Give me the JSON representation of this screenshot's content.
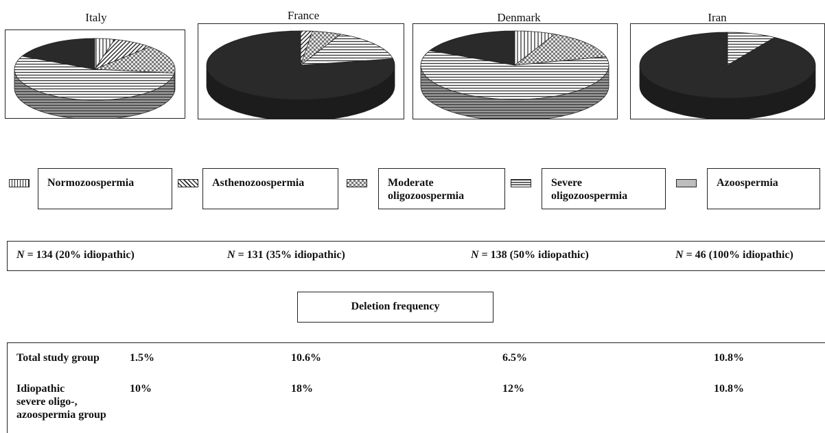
{
  "chart_data": [
    {
      "type": "pie",
      "title": "Italy",
      "categories": [
        "Normozoospermia",
        "Asthenozoospermia",
        "Moderate oligozoospermia",
        "Severe oligozoospermia",
        "Azoospermia"
      ],
      "values": [
        4,
        8,
        15,
        55,
        18
      ]
    },
    {
      "type": "pie",
      "title": "France",
      "categories": [
        "Normozoospermia",
        "Asthenozoospermia",
        "Moderate oligozoospermia",
        "Severe oligozoospermia",
        "Azoospermia"
      ],
      "values": [
        0,
        2,
        5,
        15,
        78
      ]
    },
    {
      "type": "pie",
      "title": "Denmark",
      "categories": [
        "Normozoospermia",
        "Asthenozoospermia",
        "Moderate oligozoospermia",
        "Severe oligozoospermia",
        "Azoospermia"
      ],
      "values": [
        7,
        0,
        14,
        61,
        18
      ]
    },
    {
      "type": "pie",
      "title": "Iran",
      "categories": [
        "Normozoospermia",
        "Asthenozoospermia",
        "Moderate oligozoospermia",
        "Severe oligozoospermia",
        "Azoospermia"
      ],
      "values": [
        0,
        0,
        0,
        9,
        91
      ]
    }
  ],
  "legend": [
    {
      "label": "Normozoospermia",
      "pattern": "vertical-lines"
    },
    {
      "label": "Asthenozoospermia",
      "pattern": "diagonal-lines"
    },
    {
      "label": "Moderate oligozoospermia",
      "pattern": "checker"
    },
    {
      "label": "Severe oligozoospermia",
      "pattern": "horizontal-lines"
    },
    {
      "label": "Azoospermia",
      "pattern": "solid-gray"
    }
  ],
  "legend_text": {
    "normo": "Normozoospermia",
    "astheno": "Asthenozoospermia",
    "moderate_1": "Moderate",
    "moderate_2": "oligozoospermia",
    "severe_1": "Severe",
    "severe_2": "oligozoospermia",
    "azoo": "Azoospermia"
  },
  "cohorts": [
    {
      "n_label": "N",
      "n_text": " = 134 (20% idiopathic)"
    },
    {
      "n_label": "N",
      "n_text": " = 131 (35% idiopathic)"
    },
    {
      "n_label": "N",
      "n_text": " = 138 (50% idiopathic)"
    },
    {
      "n_label": "N",
      "n_text": " = 46 (100% idiopathic)"
    }
  ],
  "deletion_header": "Deletion frequency",
  "table": {
    "row1_label": "Total study group",
    "row1": [
      "1.5%",
      "10.6%",
      "6.5%",
      "10.8%"
    ],
    "row2_label_1": "Idiopathic",
    "row2_label_2": "severe oligo-,",
    "row2_label_3": "azoospermia group",
    "row2": [
      "10%",
      "18%",
      "12%",
      "10.8%"
    ]
  },
  "colors": {
    "azoospermia": "#2a2a2a",
    "severe": "#555555",
    "outline": "#222222"
  }
}
